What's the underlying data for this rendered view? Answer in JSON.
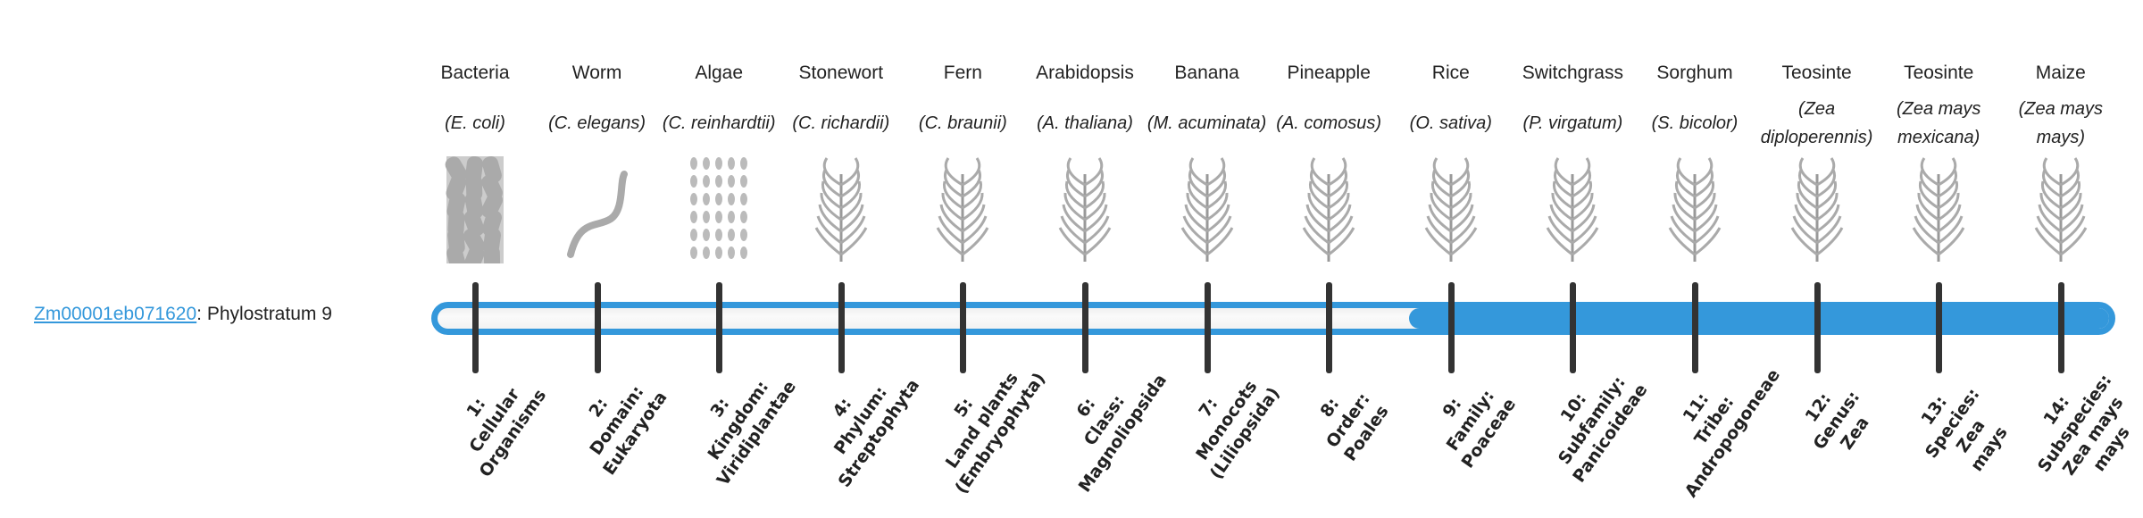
{
  "gene": {
    "id": "Zm00001eb071620",
    "suffix": ": Phylostratum 9",
    "phylostratum": 9
  },
  "colors": {
    "accent": "#3498db",
    "tick": "#333333"
  },
  "strata": [
    {
      "name": "Bacteria",
      "species": "(E. coli)",
      "icon": "bacteria-icon",
      "rank_lines": [
        "1:",
        "Cellular",
        "Organisms"
      ]
    },
    {
      "name": "Worm",
      "species": "(C. elegans)",
      "icon": "worm-icon",
      "rank_lines": [
        "2:",
        "Domain:",
        "Eukaryota"
      ]
    },
    {
      "name": "Algae",
      "species": "(C. reinhardtii)",
      "icon": "algae-icon",
      "rank_lines": [
        "3:",
        "Kingdom:",
        "Viridiplantae"
      ]
    },
    {
      "name": "Stonewort",
      "species": "(C. richardii)",
      "icon": "stonewort-icon",
      "rank_lines": [
        "4:",
        "Phylum:",
        "Streptophyta"
      ]
    },
    {
      "name": "Fern",
      "species": "(C. braunii)",
      "icon": "fern-icon",
      "rank_lines": [
        "5:",
        "Land plants",
        "(Embryophyta)"
      ]
    },
    {
      "name": "Arabidopsis",
      "species": "(A. thaliana)",
      "icon": "arabidopsis-icon",
      "rank_lines": [
        "6:",
        "Class:",
        "Magnoliopsida"
      ]
    },
    {
      "name": "Banana",
      "species": "(M. acuminata)",
      "icon": "banana-icon",
      "rank_lines": [
        "7:",
        "Monocots",
        "(Liliopsida)"
      ]
    },
    {
      "name": "Pineapple",
      "species": "(A. comosus)",
      "icon": "pineapple-icon",
      "rank_lines": [
        "8:",
        "Order:",
        "Poales"
      ]
    },
    {
      "name": "Rice",
      "species": "(O. sativa)",
      "icon": "rice-icon",
      "rank_lines": [
        "9:",
        "Family:",
        "Poaceae"
      ]
    },
    {
      "name": "Switchgrass",
      "species": "(P. virgatum)",
      "icon": "switchgrass-icon",
      "rank_lines": [
        "10:",
        "Subfamily:",
        "Panicoideae"
      ]
    },
    {
      "name": "Sorghum",
      "species": "(S. bicolor)",
      "icon": "sorghum-icon",
      "rank_lines": [
        "11:",
        "Tribe:",
        "Andropogoneae"
      ]
    },
    {
      "name": "Teosinte",
      "species": "(Zea diploperennis)",
      "icon": "teosinte-icon",
      "rank_lines": [
        "12:",
        "Genus:",
        "Zea"
      ]
    },
    {
      "name": "Teosinte",
      "species": "(Zea mays mexicana)",
      "icon": "teosinte-icon",
      "rank_lines": [
        "13:",
        "Species:",
        "Zea",
        "mays"
      ]
    },
    {
      "name": "Maize",
      "species": "(Zea mays mays)",
      "icon": "maize-icon",
      "rank_lines": [
        "14:",
        "Subspecies:",
        "Zea mays",
        "mays"
      ]
    }
  ]
}
